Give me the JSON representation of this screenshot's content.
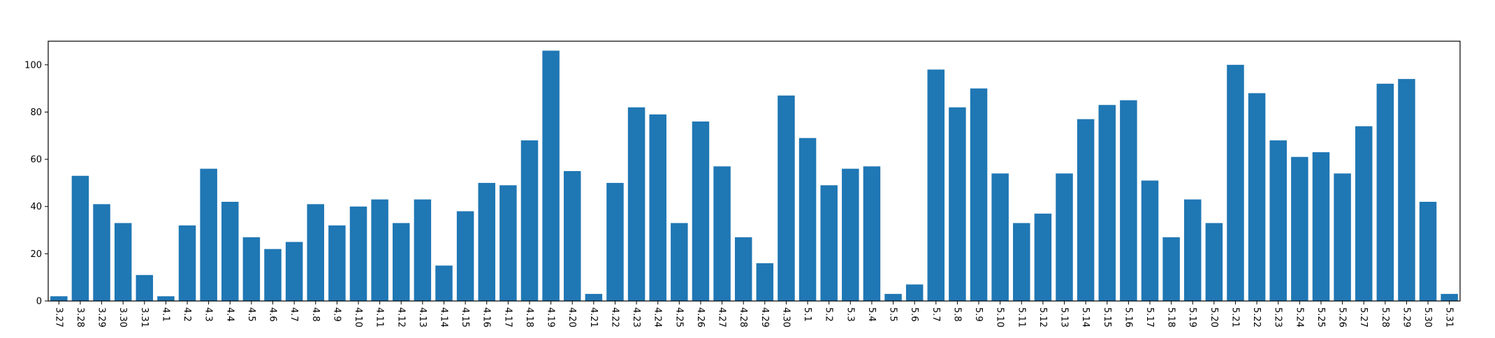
{
  "chart_data": {
    "type": "bar",
    "title": "",
    "xlabel": "",
    "ylabel": "",
    "ylim": [
      0,
      110
    ],
    "yticks": [
      0,
      20,
      40,
      60,
      80,
      100
    ],
    "grid": false,
    "bar_color": "#1f77b4",
    "categories": [
      "3.27",
      "3.28",
      "3.29",
      "3.30",
      "3.31",
      "4.1",
      "4.2",
      "4.3",
      "4.4",
      "4.5",
      "4.6",
      "4.7",
      "4.8",
      "4.9",
      "4.10",
      "4.11",
      "4.12",
      "4.13",
      "4.14",
      "4.15",
      "4.16",
      "4.17",
      "4.18",
      "4.19",
      "4.20",
      "4.21",
      "4.22",
      "4.23",
      "4.24",
      "4.25",
      "4.26",
      "4.27",
      "4.28",
      "4.29",
      "4.30",
      "5.1",
      "5.2",
      "5.3",
      "5.4",
      "5.5",
      "5.6",
      "5.7",
      "5.8",
      "5.9",
      "5.10",
      "5.11",
      "5.12",
      "5.13",
      "5.14",
      "5.15",
      "5.16",
      "5.17",
      "5.18",
      "5.19",
      "5.20",
      "5.21",
      "5.22",
      "5.23",
      "5.24",
      "5.25",
      "5.26",
      "5.27",
      "5.28",
      "5.29",
      "5.30",
      "5.31"
    ],
    "values": [
      2,
      53,
      41,
      33,
      11,
      2,
      32,
      56,
      42,
      27,
      22,
      25,
      41,
      32,
      40,
      43,
      33,
      43,
      15,
      38,
      50,
      49,
      68,
      106,
      55,
      3,
      50,
      82,
      79,
      33,
      76,
      57,
      27,
      16,
      87,
      69,
      49,
      56,
      57,
      3,
      7,
      98,
      82,
      90,
      54,
      33,
      37,
      54,
      77,
      83,
      85,
      51,
      27,
      43,
      33,
      100,
      88,
      68,
      61,
      63,
      54,
      74,
      92,
      94,
      42,
      3
    ]
  }
}
